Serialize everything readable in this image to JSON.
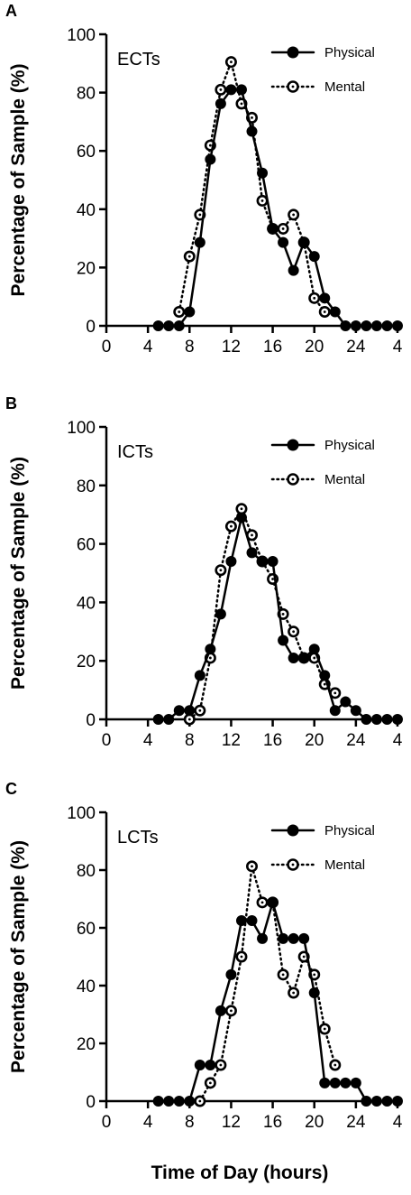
{
  "figure": {
    "xlabel": "Time of Day (hours)"
  },
  "chart_data": [
    {
      "type": "line",
      "panel": "A",
      "title": "ECTs",
      "ylabel": "Percentage of Sample (%)",
      "ylim": [
        0,
        100
      ],
      "yticks": [
        "0",
        "20",
        "40",
        "60",
        "80",
        "100"
      ],
      "xticks": [
        "0",
        "4",
        "8",
        "12",
        "16",
        "20",
        "24",
        "4"
      ],
      "grid": false,
      "legend": "top-right",
      "series": [
        {
          "name": "Physical",
          "style": "solid-filled",
          "x": [
            5,
            6,
            7,
            8,
            9,
            10,
            11,
            12,
            13,
            14,
            15,
            16,
            17,
            18,
            19,
            20,
            21,
            22,
            23,
            24,
            25,
            26,
            27,
            28
          ],
          "y": [
            0,
            0,
            0,
            4.8,
            28.6,
            57.1,
            76.2,
            81,
            81,
            66.7,
            52.4,
            33.3,
            28.6,
            19,
            28.6,
            23.8,
            9.5,
            4.8,
            0,
            0,
            0,
            0,
            0,
            0
          ]
        },
        {
          "name": "Mental",
          "style": "dotted-open",
          "x": [
            7,
            8,
            9,
            10,
            11,
            12,
            13,
            14,
            15,
            16,
            17,
            18,
            19,
            20,
            21
          ],
          "y": [
            4.8,
            23.8,
            38.1,
            61.9,
            81,
            90.5,
            76.2,
            71.4,
            42.9,
            33.3,
            33.3,
            38.1,
            28.6,
            9.5,
            4.8
          ]
        }
      ]
    },
    {
      "type": "line",
      "panel": "B",
      "title": "ICTs",
      "ylabel": "Percentage of Sample (%)",
      "ylim": [
        0,
        100
      ],
      "yticks": [
        "0",
        "20",
        "40",
        "60",
        "80",
        "100"
      ],
      "xticks": [
        "0",
        "4",
        "8",
        "12",
        "16",
        "20",
        "24",
        "4"
      ],
      "grid": false,
      "legend": "top-right",
      "series": [
        {
          "name": "Physical",
          "style": "solid-filled",
          "x": [
            5,
            6,
            7,
            8,
            9,
            10,
            11,
            12,
            13,
            14,
            15,
            16,
            17,
            18,
            19,
            20,
            21,
            22,
            23,
            24,
            25,
            26,
            27,
            28
          ],
          "y": [
            0,
            0,
            3,
            3,
            15,
            24,
            36,
            54,
            69,
            57,
            54,
            54,
            27,
            21,
            21,
            24,
            15,
            3,
            6,
            3,
            0,
            0,
            0,
            0
          ]
        },
        {
          "name": "Mental",
          "style": "dotted-open",
          "x": [
            8,
            9,
            10,
            11,
            12,
            13,
            14,
            15,
            16,
            17,
            18,
            19,
            20,
            21,
            22
          ],
          "y": [
            0,
            3,
            21,
            51,
            66,
            72,
            63,
            54,
            48,
            36,
            30,
            21,
            21,
            12,
            9
          ]
        }
      ]
    },
    {
      "type": "line",
      "panel": "C",
      "title": "LCTs",
      "ylabel": "Percentage of Sample (%)",
      "ylim": [
        0,
        100
      ],
      "yticks": [
        "0",
        "20",
        "40",
        "60",
        "80",
        "100"
      ],
      "xticks": [
        "0",
        "4",
        "8",
        "12",
        "16",
        "20",
        "24",
        "4"
      ],
      "grid": false,
      "legend": "top-right",
      "series": [
        {
          "name": "Physical",
          "style": "solid-filled",
          "x": [
            5,
            6,
            7,
            8,
            9,
            10,
            11,
            12,
            13,
            14,
            15,
            16,
            17,
            18,
            19,
            20,
            21,
            22,
            23,
            24,
            25,
            26,
            27,
            28
          ],
          "y": [
            0,
            0,
            0,
            0,
            12.5,
            12.5,
            31.3,
            43.8,
            62.5,
            62.5,
            56.3,
            68.8,
            56.3,
            56.3,
            56.3,
            37.5,
            6.3,
            6.3,
            6.3,
            6.3,
            0,
            0,
            0,
            0
          ]
        },
        {
          "name": "Mental",
          "style": "dotted-open",
          "x": [
            9,
            10,
            11,
            12,
            13,
            14,
            15,
            16,
            17,
            18,
            19,
            20,
            21,
            22
          ],
          "y": [
            0,
            6.3,
            12.5,
            31.3,
            50,
            81.3,
            68.8,
            68.8,
            43.8,
            37.5,
            50,
            43.8,
            25,
            12.5
          ]
        }
      ]
    }
  ]
}
